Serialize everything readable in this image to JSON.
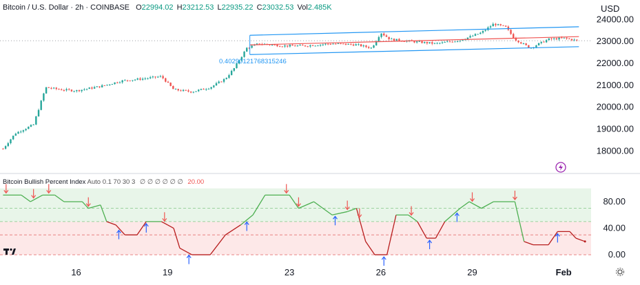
{
  "header": {
    "symbol": "Bitcoin / U.S. Dollar · 2h · COINBASE",
    "open_label": "O",
    "open": "22994.02",
    "high_label": "H",
    "high": "23212.53",
    "low_label": "L",
    "low": "22935.22",
    "close_label": "C",
    "close": "23032.53",
    "vol_label": "Vol",
    "vol": "2.485K",
    "currency": "USD"
  },
  "indicator": {
    "label": "Bitcoin Bullish Percent Index",
    "params": "Auto 0.1 70 30 3",
    "values": "∅ ∅ ∅ ∅ ∅ ∅",
    "last_value": "20.00"
  },
  "channel_annotation": "0.40290121768315246",
  "colors": {
    "up": "#26a69a",
    "down": "#ef5350",
    "channel": "#2196f3",
    "bull_line": "#4caf50",
    "bear_line": "#b71c1c",
    "green_zone": "#e8f5e9",
    "red_zone": "#fde8e8",
    "price_line": "#787b86"
  },
  "chart_data": [
    {
      "type": "candlestick",
      "title": "Bitcoin / U.S. Dollar · 2h · COINBASE",
      "ylabel": "USD",
      "ylim": [
        17600,
        24200
      ],
      "y_ticks": [
        24000,
        23000,
        22000,
        21000,
        20000,
        19000,
        18000
      ],
      "y_tick_labels": [
        "24000.00",
        "23000.00",
        "22000.00",
        "21000.00",
        "20000.00",
        "19000.00",
        "18000.00"
      ],
      "x_tick_labels": [
        "16",
        "19",
        "23",
        "26",
        "29",
        "Feb"
      ],
      "xlim_days": [
        13.5,
        32.9
      ],
      "x_tick_days": [
        16,
        19,
        23,
        26,
        29,
        32
      ],
      "last_price": 23032.53,
      "approx_close_path": [
        {
          "day": 13.6,
          "close": 18100
        },
        {
          "day": 14.0,
          "close": 18800
        },
        {
          "day": 14.6,
          "close": 19200
        },
        {
          "day": 15.0,
          "close": 20900
        },
        {
          "day": 15.5,
          "close": 20800
        },
        {
          "day": 16.0,
          "close": 20750
        },
        {
          "day": 16.8,
          "close": 20950
        },
        {
          "day": 17.5,
          "close": 21200
        },
        {
          "day": 18.2,
          "close": 21300
        },
        {
          "day": 18.8,
          "close": 21400
        },
        {
          "day": 19.2,
          "close": 20800
        },
        {
          "day": 19.8,
          "close": 20700
        },
        {
          "day": 20.4,
          "close": 20900
        },
        {
          "day": 20.9,
          "close": 21300
        },
        {
          "day": 21.2,
          "close": 21800
        },
        {
          "day": 21.6,
          "close": 22700
        },
        {
          "day": 22.0,
          "close": 22900
        },
        {
          "day": 22.8,
          "close": 22800
        },
        {
          "day": 23.5,
          "close": 22800
        },
        {
          "day": 24.4,
          "close": 22900
        },
        {
          "day": 25.2,
          "close": 22850
        },
        {
          "day": 25.7,
          "close": 22700
        },
        {
          "day": 26.0,
          "close": 23400
        },
        {
          "day": 26.3,
          "close": 23100
        },
        {
          "day": 27.0,
          "close": 23000
        },
        {
          "day": 27.8,
          "close": 22900
        },
        {
          "day": 28.6,
          "close": 23050
        },
        {
          "day": 29.3,
          "close": 23400
        },
        {
          "day": 29.7,
          "close": 23800
        },
        {
          "day": 30.1,
          "close": 23650
        },
        {
          "day": 30.4,
          "close": 23100
        },
        {
          "day": 30.9,
          "close": 22700
        },
        {
          "day": 31.5,
          "close": 23100
        },
        {
          "day": 32.0,
          "close": 23150
        },
        {
          "day": 32.5,
          "close": 23030
        }
      ],
      "channel": {
        "upper": [
          {
            "day": 21.7,
            "price": 23280
          },
          {
            "day": 32.5,
            "price": 23670
          }
        ],
        "middle": [
          {
            "day": 21.7,
            "price": 22840
          },
          {
            "day": 32.5,
            "price": 23220
          }
        ],
        "lower": [
          {
            "day": 21.7,
            "price": 22400
          },
          {
            "day": 32.5,
            "price": 22760
          }
        ]
      }
    },
    {
      "type": "line",
      "title": "Bitcoin Bullish Percent Index",
      "ylim": [
        -2,
        108
      ],
      "y_ticks": [
        80,
        40,
        0
      ],
      "y_tick_labels": [
        "80.00",
        "40.00",
        "0.00"
      ],
      "bands": {
        "overbought": 70,
        "oversold": 30,
        "mid": 50
      },
      "zones": [
        {
          "from": 50,
          "to": 100,
          "color": "green"
        },
        {
          "from": 0,
          "to": 50,
          "color": "red"
        }
      ],
      "series": [
        {
          "values": [
            {
              "day": 13.6,
              "value": 90
            },
            {
              "day": 14.2,
              "value": 90
            },
            {
              "day": 14.5,
              "value": 80
            },
            {
              "day": 14.9,
              "value": 90
            },
            {
              "day": 15.3,
              "value": 90
            },
            {
              "day": 15.6,
              "value": 80
            },
            {
              "day": 16.2,
              "value": 80
            },
            {
              "day": 16.4,
              "value": 70
            },
            {
              "day": 16.8,
              "value": 75
            },
            {
              "day": 17.0,
              "value": 50
            },
            {
              "day": 17.3,
              "value": 45
            },
            {
              "day": 17.6,
              "value": 30
            },
            {
              "day": 18.0,
              "value": 30
            },
            {
              "day": 18.3,
              "value": 50
            },
            {
              "day": 18.8,
              "value": 50
            },
            {
              "day": 19.0,
              "value": 45
            },
            {
              "day": 19.2,
              "value": 40
            },
            {
              "day": 19.4,
              "value": 10
            },
            {
              "day": 19.8,
              "value": 0
            },
            {
              "day": 20.4,
              "value": 0
            },
            {
              "day": 20.9,
              "value": 30
            },
            {
              "day": 21.4,
              "value": 45
            },
            {
              "day": 21.8,
              "value": 60
            },
            {
              "day": 22.2,
              "value": 90
            },
            {
              "day": 23.0,
              "value": 90
            },
            {
              "day": 23.3,
              "value": 70
            },
            {
              "day": 23.8,
              "value": 80
            },
            {
              "day": 24.4,
              "value": 60
            },
            {
              "day": 24.9,
              "value": 65
            },
            {
              "day": 25.2,
              "value": 70
            },
            {
              "day": 25.5,
              "value": 20
            },
            {
              "day": 25.8,
              "value": 0
            },
            {
              "day": 26.2,
              "value": 0
            },
            {
              "day": 26.5,
              "value": 60
            },
            {
              "day": 26.9,
              "value": 60
            },
            {
              "day": 27.2,
              "value": 50
            },
            {
              "day": 27.5,
              "value": 25
            },
            {
              "day": 27.8,
              "value": 25
            },
            {
              "day": 28.1,
              "value": 50
            },
            {
              "day": 28.6,
              "value": 70
            },
            {
              "day": 28.9,
              "value": 80
            },
            {
              "day": 29.3,
              "value": 70
            },
            {
              "day": 29.7,
              "value": 80
            },
            {
              "day": 30.4,
              "value": 80
            },
            {
              "day": 30.7,
              "value": 20
            },
            {
              "day": 31.0,
              "value": 15
            },
            {
              "day": 31.5,
              "value": 15
            },
            {
              "day": 31.8,
              "value": 35
            },
            {
              "day": 32.2,
              "value": 35
            },
            {
              "day": 32.4,
              "value": 25
            },
            {
              "day": 32.7,
              "value": 20
            }
          ]
        }
      ],
      "signals": [
        {
          "day": 13.7,
          "dir": "down"
        },
        {
          "day": 14.6,
          "dir": "down"
        },
        {
          "day": 15.1,
          "dir": "down"
        },
        {
          "day": 16.4,
          "dir": "down"
        },
        {
          "day": 17.4,
          "dir": "up"
        },
        {
          "day": 18.3,
          "dir": "up"
        },
        {
          "day": 18.9,
          "dir": "down"
        },
        {
          "day": 19.7,
          "dir": "up"
        },
        {
          "day": 21.6,
          "dir": "up"
        },
        {
          "day": 22.9,
          "dir": "down"
        },
        {
          "day": 23.3,
          "dir": "down"
        },
        {
          "day": 24.5,
          "dir": "up"
        },
        {
          "day": 24.9,
          "dir": "down"
        },
        {
          "day": 25.3,
          "dir": "down"
        },
        {
          "day": 26.1,
          "dir": "up"
        },
        {
          "day": 27.0,
          "dir": "down"
        },
        {
          "day": 27.6,
          "dir": "up"
        },
        {
          "day": 28.5,
          "dir": "up"
        },
        {
          "day": 29.0,
          "dir": "down"
        },
        {
          "day": 30.4,
          "dir": "down"
        },
        {
          "day": 31.8,
          "dir": "up"
        }
      ]
    }
  ]
}
